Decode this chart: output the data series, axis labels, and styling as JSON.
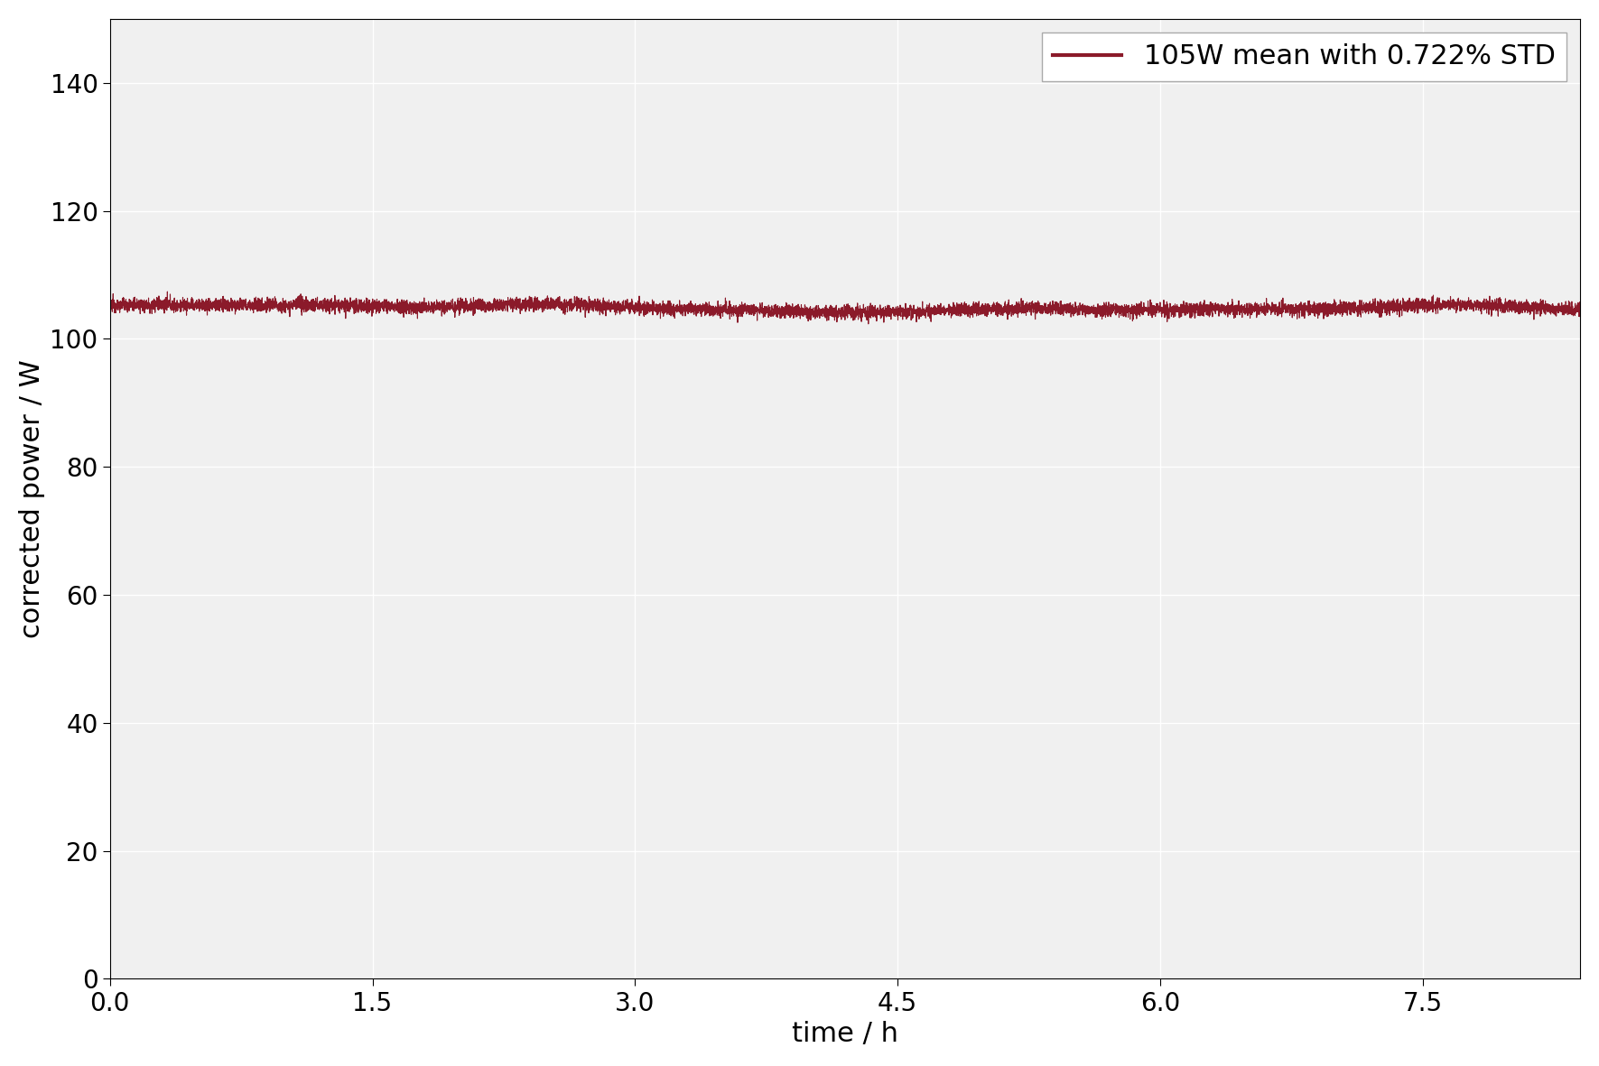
{
  "mean_power": 105.0,
  "std_percent": 0.722,
  "duration_hours": 8.4,
  "num_points": 10000,
  "line_color": "#8B1A2A",
  "line_width": 0.8,
  "legend_label": "105W mean with 0.722% STD",
  "xlabel": "time / h",
  "ylabel": "corrected power / W",
  "xlim": [
    0.0,
    8.4
  ],
  "ylim": [
    0,
    150
  ],
  "yticks": [
    0,
    20,
    40,
    60,
    80,
    100,
    120,
    140
  ],
  "xticks": [
    0.0,
    1.5,
    3.0,
    4.5,
    6.0,
    7.5
  ],
  "background_color": "#f0f0f0",
  "grid_color": "#ffffff",
  "figsize": [
    17.71,
    11.81
  ],
  "dpi": 100,
  "label_fontsize": 22,
  "tick_fontsize": 20,
  "legend_fontsize": 22
}
